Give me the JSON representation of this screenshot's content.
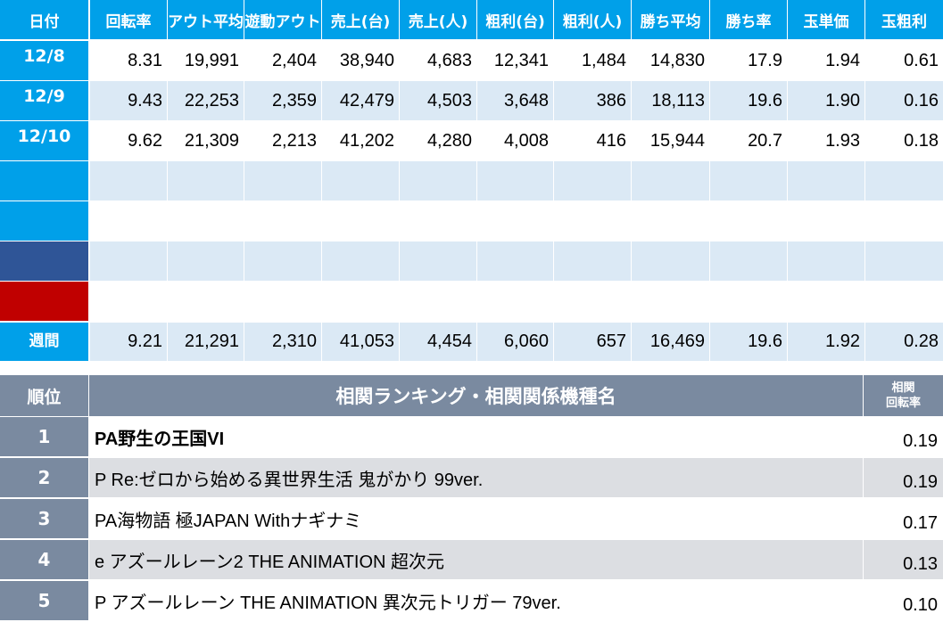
{
  "colors": {
    "header_bg": "#00a0e9",
    "date_cell_bg": "#00a0e9",
    "sat_bg": "#2f5597",
    "sun_bg": "#c00000",
    "row_alt_bg": "#dbe9f5",
    "ranking_header_bg": "#7a8aa0",
    "ranking_row_alt_bg": "#dcdee2"
  },
  "daily": {
    "headers": [
      "日付",
      "回転率",
      "アウト平均",
      "遊動アウト",
      "売上(台)",
      "売上(人)",
      "粗利(台)",
      "粗利(人)",
      "勝ち平均",
      "勝ち率",
      "玉単価",
      "玉粗利"
    ],
    "rows": [
      {
        "date": "12/8",
        "values": [
          "8.31",
          "19,991",
          "2,404",
          "38,940",
          "4,683",
          "12,341",
          "1,484",
          "14,830",
          "17.9",
          "1.94",
          "0.61"
        ]
      },
      {
        "date": "12/9",
        "values": [
          "9.43",
          "22,253",
          "2,359",
          "42,479",
          "4,503",
          "3,648",
          "386",
          "18,113",
          "19.6",
          "1.90",
          "0.16"
        ]
      },
      {
        "date": "12/10",
        "values": [
          "9.62",
          "21,309",
          "2,213",
          "41,202",
          "4,280",
          "4,008",
          "416",
          "15,944",
          "20.7",
          "1.93",
          "0.18"
        ]
      },
      {
        "date": "",
        "values": [
          "",
          "",
          "",
          "",
          "",
          "",
          "",
          "",
          "",
          "",
          ""
        ]
      },
      {
        "date": "",
        "values": [
          "",
          "",
          "",
          "",
          "",
          "",
          "",
          "",
          "",
          "",
          ""
        ]
      },
      {
        "date": "",
        "values": [
          "",
          "",
          "",
          "",
          "",
          "",
          "",
          "",
          "",
          "",
          ""
        ]
      },
      {
        "date": "",
        "values": [
          "",
          "",
          "",
          "",
          "",
          "",
          "",
          "",
          "",
          "",
          ""
        ]
      }
    ],
    "weekly": {
      "label": "週間",
      "values": [
        "9.21",
        "21,291",
        "2,310",
        "41,053",
        "4,454",
        "6,060",
        "657",
        "16,469",
        "19.6",
        "1.92",
        "0.28"
      ]
    }
  },
  "ranking": {
    "header_rank": "順位",
    "header_title": "相関ランキング・相関関係機種名",
    "header_rate_line1": "相関",
    "header_rate_line2": "回転率",
    "rows": [
      {
        "rank": "1",
        "name": "PA野生の王国VI",
        "rate": "0.19",
        "bold": true
      },
      {
        "rank": "2",
        "name": "P Re:ゼロから始める異世界生活 鬼がかり 99ver.",
        "rate": "0.19",
        "bold": false
      },
      {
        "rank": "3",
        "name": "PA海物語 極JAPAN Withナギナミ",
        "rate": "0.17",
        "bold": false
      },
      {
        "rank": "4",
        "name": "e アズールレーン2 THE ANIMATION 超次元",
        "rate": "0.13",
        "bold": false
      },
      {
        "rank": "5",
        "name": "P アズールレーン THE ANIMATION 異次元トリガー 79ver.",
        "rate": "0.10",
        "bold": false
      }
    ]
  }
}
